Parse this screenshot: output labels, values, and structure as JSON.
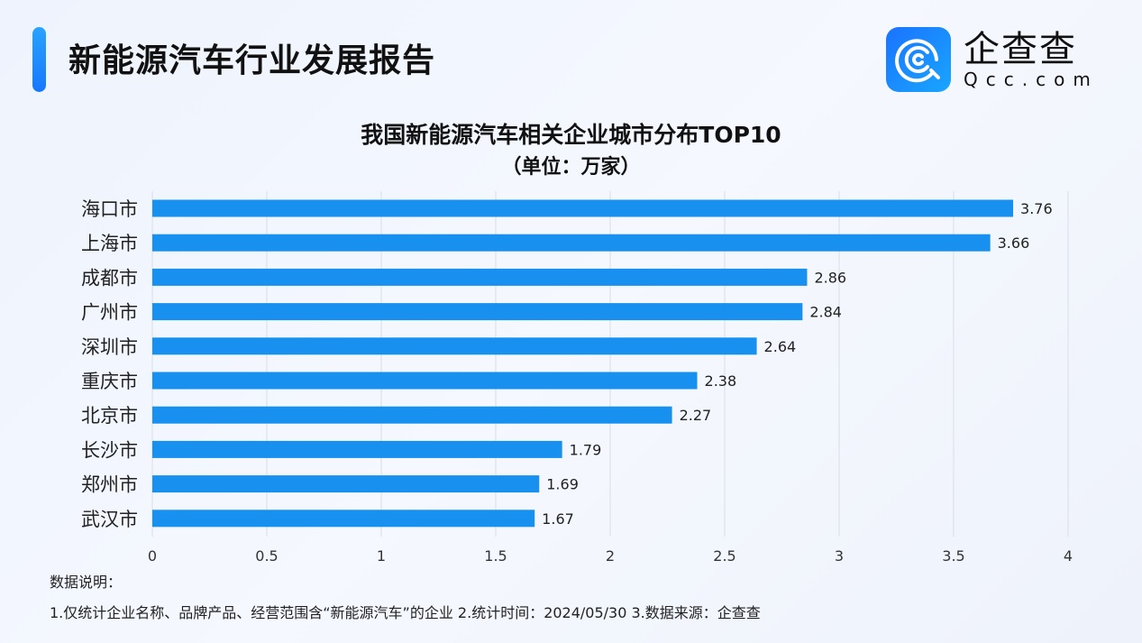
{
  "header": {
    "title": "新能源汽车行业发展报告"
  },
  "logo": {
    "cn": "企查查",
    "en": "Qcc.com"
  },
  "colors": {
    "bar": "#1890f0",
    "accent": "#1677ff"
  },
  "chart_data": {
    "type": "bar",
    "orientation": "horizontal",
    "title": "我国新能源汽车相关企业城市分布TOP10",
    "subtitle": "（单位：万家）",
    "categories": [
      "海口市",
      "上海市",
      "成都市",
      "广州市",
      "深圳市",
      "重庆市",
      "北京市",
      "长沙市",
      "郑州市",
      "武汉市"
    ],
    "values": [
      3.76,
      3.66,
      2.86,
      2.84,
      2.64,
      2.38,
      2.27,
      1.79,
      1.69,
      1.67
    ],
    "xlim": [
      0,
      4
    ],
    "xticks": [
      "0",
      "0.5",
      "1",
      "1.5",
      "2",
      "2.5",
      "3",
      "3.5",
      "4"
    ],
    "grid": true
  },
  "notes": {
    "heading": "数据说明：",
    "text": "1.仅统计企业名称、品牌产品、经营范围含“新能源汽车”的企业   2.统计时间：2024/05/30    3.数据来源：企查查"
  }
}
